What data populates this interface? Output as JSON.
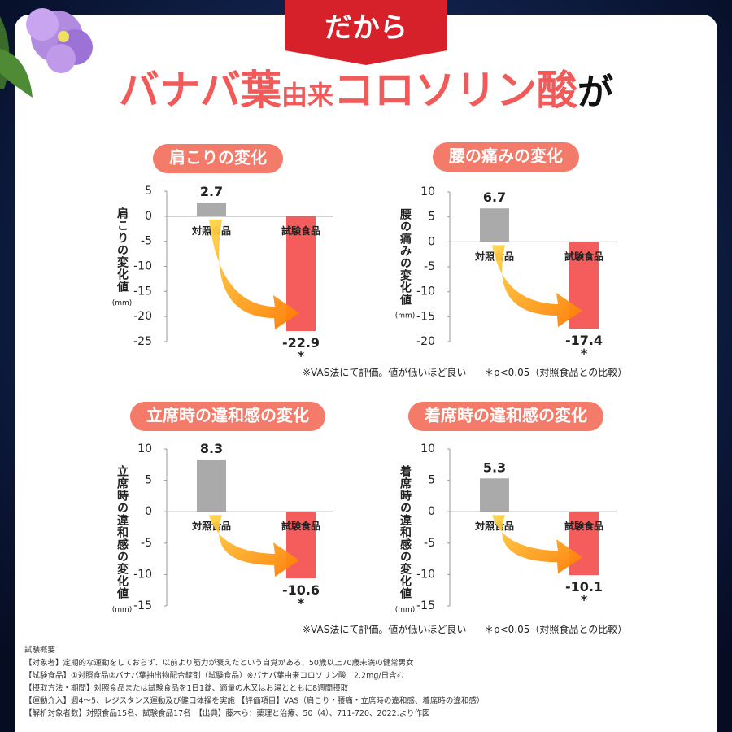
{
  "banner": "だから",
  "headline": [
    "バナバ葉",
    "由来",
    "コロソリン酸",
    "が"
  ],
  "chart_data": [
    {
      "type": "bar",
      "title": "肩こりの変化",
      "y_label": "肩こりの変化値",
      "y_unit": "(mm)",
      "categories": [
        "対照食品",
        "試験食品"
      ],
      "values": [
        2.7,
        -22.9
      ],
      "colors": [
        "#aaaaaa",
        "#f55d5d"
      ],
      "annotation": "*",
      "ylim": [
        -25,
        5
      ],
      "yticks": [
        5,
        0,
        -5,
        -10,
        -15,
        -20,
        -25
      ]
    },
    {
      "type": "bar",
      "title": "腰の痛みの変化",
      "y_label": "腰の痛みの変化値",
      "y_unit": "(mm)",
      "categories": [
        "対照食品",
        "試験食品"
      ],
      "values": [
        6.7,
        -17.4
      ],
      "colors": [
        "#aaaaaa",
        "#f55d5d"
      ],
      "annotation": "*",
      "ylim": [
        -20,
        10
      ],
      "yticks": [
        10,
        5,
        0,
        -5,
        -10,
        -15,
        -20
      ]
    },
    {
      "type": "bar",
      "title": "立席時の違和感の変化",
      "y_label": "立席時の違和感の変化値",
      "y_unit": "(mm)",
      "categories": [
        "対照食品",
        "試験食品"
      ],
      "values": [
        8.3,
        -10.6
      ],
      "colors": [
        "#aaaaaa",
        "#f55d5d"
      ],
      "annotation": "*",
      "ylim": [
        -15,
        10
      ],
      "yticks": [
        10,
        5,
        0,
        -5,
        -10,
        -15
      ]
    },
    {
      "type": "bar",
      "title": "着席時の違和感の変化",
      "y_label": "着席時の違和感の変化値",
      "y_unit": "(mm)",
      "categories": [
        "対照食品",
        "試験食品"
      ],
      "values": [
        5.3,
        -10.1
      ],
      "colors": [
        "#aaaaaa",
        "#f55d5d"
      ],
      "annotation": "*",
      "ylim": [
        -15,
        10
      ],
      "yticks": [
        10,
        5,
        0,
        -5,
        -10,
        -15
      ]
    }
  ],
  "footnotes": [
    {
      "method": "※VAS法にて評価。値が低いほど良い",
      "significance": "＊p<0.05（対照食品との比較）"
    },
    {
      "method": "※VAS法にて評価。値が低いほど良い",
      "significance": "＊p<0.05（対照食品との比較）"
    }
  ],
  "summary": {
    "title": "試験概要",
    "lines": [
      "【対象者】定期的な運動をしておらず、以前より筋力が衰えたという自覚がある、50歳以上70歳未満の健常男女",
      "【試験食品】①対照食品②バナバ葉抽出物配合錠剤（試験食品）※バナバ葉由来コロソリン酸　2.2mg/日含む",
      "【摂取方法・期間】対照食品または試験食品を1日1錠、適量の水又はお湯とともに8週間摂取",
      "【運動介入】週4～5、レジスタンス運動及び健口体操を実施 【評価項目】VAS（肩こり・腰痛・立席時の違和感、着席時の違和感）",
      "【解析対象者数】対照食品15名、試験食品17名　【出典】藤木ら：薬理と治療、50（4）、711-720、2022.より作図"
    ]
  }
}
